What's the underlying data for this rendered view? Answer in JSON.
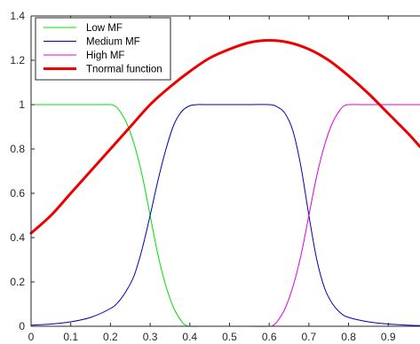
{
  "chart_data": {
    "type": "line",
    "title": "",
    "xlabel": "",
    "ylabel": "",
    "xlim": [
      0,
      0.98
    ],
    "ylim": [
      0,
      1.4
    ],
    "xticks": [
      0,
      0.1,
      0.2,
      0.3,
      0.4,
      0.5,
      0.6,
      0.7,
      0.8,
      0.9
    ],
    "xtick_labels": [
      "0",
      "0.1",
      "0.2",
      "0.3",
      "0.4",
      "0.5",
      "0.6",
      "0.7",
      "0.8",
      "0.9"
    ],
    "yticks": [
      0,
      0.2,
      0.4,
      0.6,
      0.8,
      1,
      1.2,
      1.4
    ],
    "ytick_labels": [
      "0",
      "0.2",
      "0.4",
      "0.6",
      "0.8",
      "1",
      "1.2",
      "1.4"
    ],
    "grid": false,
    "legend_position": "top-left",
    "series": [
      {
        "name": "Low MF",
        "color": "#00e000",
        "x": [
          0,
          0.05,
          0.1,
          0.15,
          0.2,
          0.21,
          0.22,
          0.24,
          0.26,
          0.28,
          0.3,
          0.32,
          0.34,
          0.36,
          0.38,
          0.39,
          0.4,
          0.45,
          0.5,
          0.6,
          0.7,
          0.8,
          0.9,
          0.98
        ],
        "y": [
          1,
          1,
          1,
          1,
          1,
          0.995,
          0.98,
          0.92,
          0.82,
          0.68,
          0.5,
          0.32,
          0.18,
          0.08,
          0.02,
          0.005,
          0,
          0,
          0,
          0,
          0,
          0,
          0,
          0
        ]
      },
      {
        "name": "Medium MF",
        "color": "#0000b0",
        "x": [
          0,
          0.05,
          0.1,
          0.15,
          0.2,
          0.22,
          0.24,
          0.26,
          0.28,
          0.3,
          0.32,
          0.34,
          0.36,
          0.38,
          0.4,
          0.42,
          0.45,
          0.5,
          0.55,
          0.6,
          0.62,
          0.64,
          0.66,
          0.68,
          0.7,
          0.72,
          0.74,
          0.76,
          0.78,
          0.8,
          0.85,
          0.9,
          0.95,
          0.98
        ],
        "y": [
          0.005,
          0.01,
          0.02,
          0.04,
          0.08,
          0.11,
          0.16,
          0.23,
          0.35,
          0.5,
          0.66,
          0.8,
          0.91,
          0.97,
          0.995,
          1,
          1,
          1,
          1,
          1,
          0.99,
          0.96,
          0.88,
          0.72,
          0.5,
          0.3,
          0.17,
          0.1,
          0.06,
          0.04,
          0.02,
          0.01,
          0.005,
          0.003
        ]
      },
      {
        "name": "High MF",
        "color": "#e000e0",
        "x": [
          0,
          0.1,
          0.2,
          0.3,
          0.4,
          0.5,
          0.6,
          0.61,
          0.62,
          0.64,
          0.66,
          0.68,
          0.7,
          0.72,
          0.74,
          0.76,
          0.78,
          0.79,
          0.8,
          0.85,
          0.9,
          0.98
        ],
        "y": [
          0,
          0,
          0,
          0,
          0,
          0,
          0,
          0.005,
          0.02,
          0.08,
          0.18,
          0.32,
          0.5,
          0.68,
          0.82,
          0.92,
          0.98,
          0.995,
          1,
          1,
          1,
          1
        ]
      },
      {
        "name": "Tnormal function",
        "color": "#ee0000",
        "x": [
          0,
          0.05,
          0.1,
          0.15,
          0.2,
          0.25,
          0.3,
          0.35,
          0.4,
          0.45,
          0.5,
          0.55,
          0.6,
          0.65,
          0.7,
          0.75,
          0.8,
          0.85,
          0.9,
          0.95,
          0.98
        ],
        "y": [
          0.42,
          0.5,
          0.6,
          0.7,
          0.8,
          0.9,
          1.0,
          1.08,
          1.15,
          1.21,
          1.25,
          1.28,
          1.29,
          1.28,
          1.25,
          1.2,
          1.13,
          1.05,
          0.96,
          0.87,
          0.81
        ]
      }
    ]
  }
}
